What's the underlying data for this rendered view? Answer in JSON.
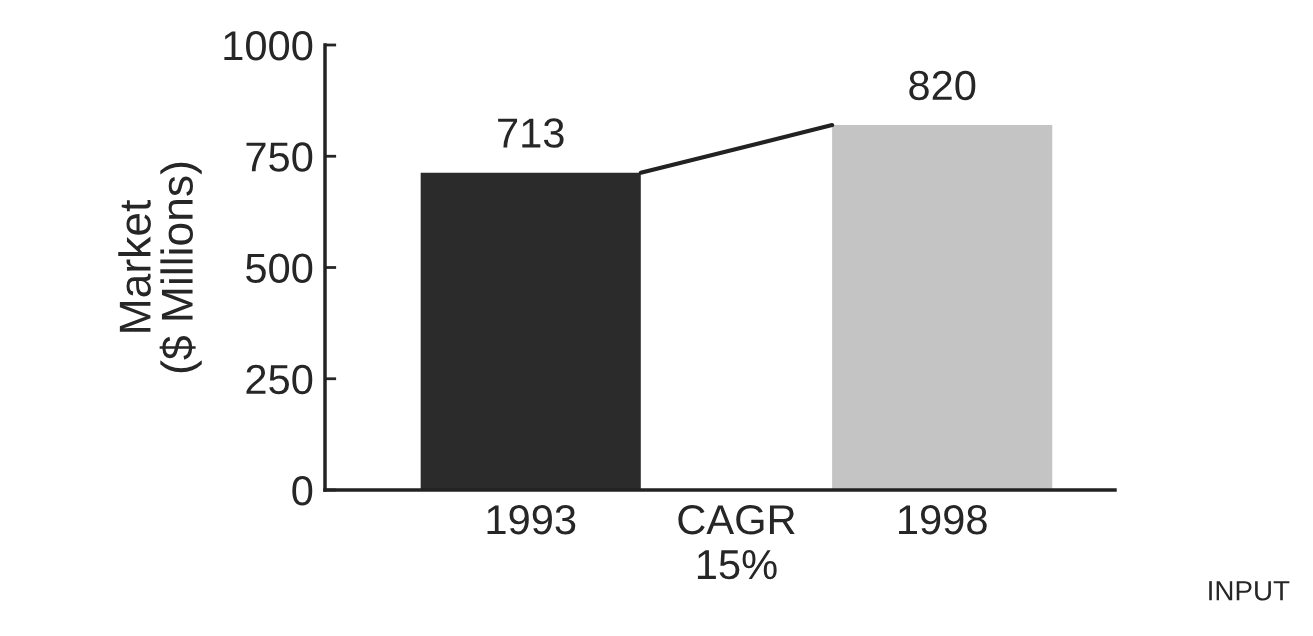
{
  "chart_data": {
    "type": "bar",
    "ylabel": "Market\n($ Millions)",
    "categories": [
      "1993",
      "CAGR\n15%",
      "1998"
    ],
    "values": [
      713,
      null,
      820
    ],
    "colors": [
      "#2b2b2b",
      "#ffffff",
      "#c4c4c4"
    ],
    "ylim": [
      0,
      1000
    ],
    "yticks": [
      0,
      250,
      500,
      750,
      1000
    ],
    "data_labels": true,
    "grid": false,
    "legend": false,
    "annotations": [
      "INPUT"
    ]
  }
}
